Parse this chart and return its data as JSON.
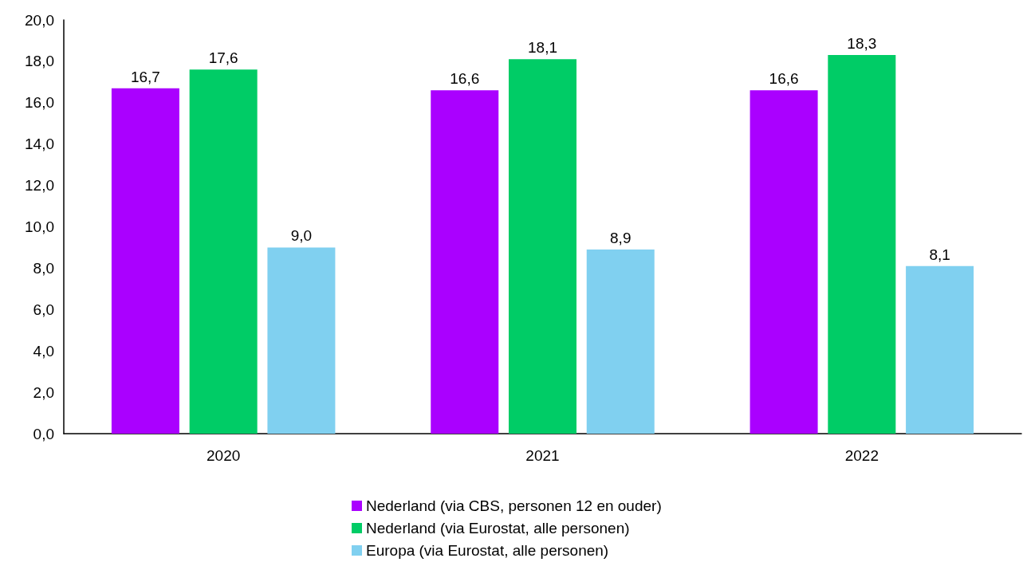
{
  "chart_data": {
    "type": "bar",
    "categories": [
      "2020",
      "2021",
      "2022"
    ],
    "series": [
      {
        "name": "Nederland (via CBS, personen 12 en ouder)",
        "color": "#aa00ff",
        "values": [
          16.7,
          16.6,
          16.6
        ],
        "value_labels": [
          "16,7",
          "16,6",
          "16,6"
        ]
      },
      {
        "name": "Nederland (via Eurostat, alle personen)",
        "color": "#00cc66",
        "values": [
          17.6,
          18.1,
          18.3
        ],
        "value_labels": [
          "17,6",
          "18,1",
          "18,3"
        ]
      },
      {
        "name": "Europa (via Eurostat, alle personen)",
        "color": "#80d0f0",
        "values": [
          9.0,
          8.9,
          8.1
        ],
        "value_labels": [
          "9,0",
          "8,9",
          "8,1"
        ]
      }
    ],
    "ylim": [
      0,
      20
    ],
    "yticks": [
      {
        "value": 0,
        "label": "0,0"
      },
      {
        "value": 2,
        "label": "2,0"
      },
      {
        "value": 4,
        "label": "4,0"
      },
      {
        "value": 6,
        "label": "6,0"
      },
      {
        "value": 8,
        "label": "8,0"
      },
      {
        "value": 10,
        "label": "10,0"
      },
      {
        "value": 12,
        "label": "12,0"
      },
      {
        "value": 14,
        "label": "14,0"
      },
      {
        "value": 16,
        "label": "16,0"
      },
      {
        "value": 18,
        "label": "18,0"
      },
      {
        "value": 20,
        "label": "20,0"
      }
    ],
    "grid": false,
    "legend": "bottom"
  }
}
